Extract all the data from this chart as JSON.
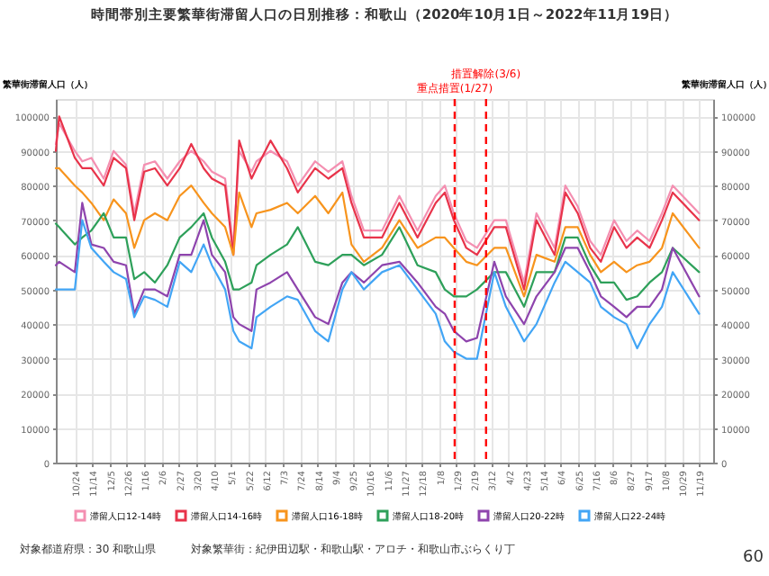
{
  "chart_data": {
    "type": "line",
    "title": "時間帯別主要繁華街滞留人口の日別推移：和歌山（2020年10月1日～2022年11月19日）",
    "ylabel": "繁華街滞留人口（人）",
    "y2label": "繁華街滞留人口（人）",
    "x": [
      "2020-10-01",
      "2020-10-05",
      "2020-10-24",
      "2020-11-02",
      "2020-11-13",
      "2020-11-28",
      "2020-12-10",
      "2020-12-25",
      "2021-01-04",
      "2021-01-16",
      "2021-01-29",
      "2021-02-13",
      "2021-02-28",
      "2021-03-14",
      "2021-03-29",
      "2021-04-08",
      "2021-04-24",
      "2021-05-04",
      "2021-05-11",
      "2021-05-26",
      "2021-06-01",
      "2021-06-18",
      "2021-07-08",
      "2021-07-21",
      "2021-08-11",
      "2021-08-27",
      "2021-09-13",
      "2021-09-24",
      "2021-10-09",
      "2021-10-31",
      "2021-11-21",
      "2021-12-13",
      "2022-01-04",
      "2022-01-15",
      "2022-01-26",
      "2022-02-10",
      "2022-02-23",
      "2022-03-16",
      "2022-03-30",
      "2022-04-21",
      "2022-05-06",
      "2022-05-28",
      "2022-06-10",
      "2022-06-25",
      "2022-07-10",
      "2022-07-23",
      "2022-08-08",
      "2022-08-23",
      "2022-09-05",
      "2022-09-20",
      "2022-10-05",
      "2022-10-18",
      "2022-11-19"
    ],
    "series": [
      {
        "name": "滞留人口12-14時",
        "color": "#f48fb1",
        "values": [
          92000,
          98000,
          90000,
          87000,
          88000,
          82000,
          90000,
          86000,
          72000,
          86000,
          87000,
          82000,
          87000,
          90000,
          87000,
          84000,
          82000,
          62000,
          90000,
          84000,
          87000,
          90000,
          87000,
          80000,
          87000,
          84000,
          87000,
          77000,
          67000,
          67000,
          77000,
          67000,
          77000,
          80000,
          72000,
          64000,
          62000,
          70000,
          70000,
          52000,
          72000,
          62000,
          80000,
          74000,
          64000,
          60000,
          70000,
          64000,
          67000,
          64000,
          72000,
          80000,
          72000
        ]
      },
      {
        "name": "滞留人口14-16時",
        "color": "#e8334a",
        "values": [
          90000,
          100000,
          88000,
          85000,
          85000,
          80000,
          88000,
          85000,
          70000,
          84000,
          85000,
          80000,
          85000,
          92000,
          85000,
          82000,
          80000,
          60000,
          93000,
          82000,
          85000,
          93000,
          85000,
          78000,
          85000,
          82000,
          85000,
          75000,
          65000,
          65000,
          75000,
          65000,
          75000,
          78000,
          70000,
          62000,
          60000,
          68000,
          68000,
          50000,
          70000,
          60000,
          78000,
          72000,
          62000,
          58000,
          68000,
          62000,
          65000,
          62000,
          70000,
          78000,
          70000
        ]
      },
      {
        "name": "滞留人口16-18時",
        "color": "#f7941d",
        "values": [
          85000,
          85000,
          80000,
          78000,
          75000,
          70000,
          76000,
          72000,
          62000,
          70000,
          72000,
          70000,
          77000,
          80000,
          75000,
          72000,
          68000,
          60000,
          78000,
          68000,
          72000,
          73000,
          75000,
          72000,
          77000,
          72000,
          78000,
          63000,
          58000,
          62000,
          70000,
          62000,
          65000,
          65000,
          62000,
          58000,
          57000,
          62000,
          62000,
          48000,
          60000,
          58000,
          68000,
          68000,
          60000,
          55000,
          58000,
          55000,
          57000,
          58000,
          62000,
          72000,
          62000
        ]
      },
      {
        "name": "滞留人口18-20時",
        "color": "#2ea05a",
        "values": [
          69000,
          68000,
          63000,
          65000,
          67000,
          72000,
          65000,
          65000,
          53000,
          55000,
          52000,
          57000,
          65000,
          68000,
          72000,
          65000,
          58000,
          50000,
          50000,
          52000,
          57000,
          60000,
          63000,
          68000,
          58000,
          57000,
          60000,
          60000,
          57000,
          60000,
          68000,
          57000,
          55000,
          50000,
          48000,
          48000,
          50000,
          55000,
          55000,
          45000,
          55000,
          55000,
          65000,
          65000,
          57000,
          52000,
          52000,
          47000,
          48000,
          52000,
          55000,
          62000,
          55000
        ]
      },
      {
        "name": "滞留人口20-22時",
        "color": "#8e44ad",
        "values": [
          57000,
          58000,
          55000,
          75000,
          63000,
          62000,
          58000,
          57000,
          43000,
          50000,
          50000,
          48000,
          60000,
          60000,
          70000,
          60000,
          55000,
          42000,
          40000,
          38000,
          50000,
          52000,
          55000,
          50000,
          42000,
          40000,
          52000,
          55000,
          52000,
          57000,
          58000,
          52000,
          45000,
          43000,
          38000,
          35000,
          36000,
          58000,
          48000,
          40000,
          48000,
          55000,
          62000,
          62000,
          55000,
          48000,
          45000,
          42000,
          45000,
          45000,
          50000,
          62000,
          48000
        ]
      },
      {
        "name": "滞留人口22-24時",
        "color": "#42a5f5",
        "values": [
          50000,
          50000,
          50000,
          70000,
          62000,
          58000,
          55000,
          53000,
          42000,
          48000,
          47000,
          45000,
          58000,
          55000,
          63000,
          57000,
          50000,
          38000,
          35000,
          33000,
          42000,
          45000,
          48000,
          47000,
          38000,
          35000,
          50000,
          55000,
          50000,
          55000,
          57000,
          50000,
          43000,
          35000,
          32000,
          30000,
          30000,
          55000,
          45000,
          35000,
          40000,
          52000,
          58000,
          55000,
          52000,
          45000,
          42000,
          40000,
          33000,
          40000,
          45000,
          55000,
          43000
        ]
      }
    ],
    "xlim": [
      "2020-10-01",
      "2022-12-06"
    ],
    "xticks": [
      {
        "value": "2020-10-24",
        "label": "10/24"
      },
      {
        "value": "2020-11-14",
        "label": "11/14"
      },
      {
        "value": "2020-12-05",
        "label": "12/5"
      },
      {
        "value": "2020-12-26",
        "label": "12/26"
      },
      {
        "value": "2021-01-16",
        "label": "1/16"
      },
      {
        "value": "2021-02-06",
        "label": "2/6"
      },
      {
        "value": "2021-02-27",
        "label": "2/27"
      },
      {
        "value": "2021-03-20",
        "label": "3/20"
      },
      {
        "value": "2021-04-10",
        "label": "4/10"
      },
      {
        "value": "2021-05-01",
        "label": "5/1"
      },
      {
        "value": "2021-05-22",
        "label": "5/22"
      },
      {
        "value": "2021-06-12",
        "label": "6/12"
      },
      {
        "value": "2021-07-03",
        "label": "7/3"
      },
      {
        "value": "2021-07-24",
        "label": "7/24"
      },
      {
        "value": "2021-08-14",
        "label": "8/14"
      },
      {
        "value": "2021-09-04",
        "label": "9/4"
      },
      {
        "value": "2021-09-25",
        "label": "9/25"
      },
      {
        "value": "2021-10-16",
        "label": "10/16"
      },
      {
        "value": "2021-11-06",
        "label": "11/6"
      },
      {
        "value": "2021-11-27",
        "label": "11/27"
      },
      {
        "value": "2021-12-18",
        "label": "12/18"
      },
      {
        "value": "2022-01-08",
        "label": "1/8"
      },
      {
        "value": "2022-01-29",
        "label": "1/29"
      },
      {
        "value": "2022-02-19",
        "label": "2/19"
      },
      {
        "value": "2022-03-12",
        "label": "3/12"
      },
      {
        "value": "2022-04-02",
        "label": "4/2"
      },
      {
        "value": "2022-04-23",
        "label": "4/23"
      },
      {
        "value": "2022-05-14",
        "label": "5/14"
      },
      {
        "value": "2022-06-04",
        "label": "6/4"
      },
      {
        "value": "2022-06-25",
        "label": "6/25"
      },
      {
        "value": "2022-07-16",
        "label": "7/16"
      },
      {
        "value": "2022-08-06",
        "label": "8/6"
      },
      {
        "value": "2022-08-27",
        "label": "8/27"
      },
      {
        "value": "2022-09-17",
        "label": "9/17"
      },
      {
        "value": "2022-10-08",
        "label": "10/8"
      },
      {
        "value": "2022-10-29",
        "label": "10/29"
      },
      {
        "value": "2022-11-19",
        "label": "11/19"
      }
    ],
    "ylim": [
      0,
      105000
    ],
    "yticks": [
      0,
      10000,
      20000,
      30000,
      40000,
      50000,
      60000,
      70000,
      80000,
      90000,
      100000
    ],
    "y2lim": [
      0,
      105000
    ],
    "y2ticks": [
      0,
      10000,
      20000,
      30000,
      40000,
      50000,
      60000,
      70000,
      80000,
      90000,
      100000
    ],
    "ref_lines": [
      {
        "axis": "x",
        "value": "2022-01-27",
        "label": "重点措置(1/27)",
        "color": "#ff0000",
        "line_style": "dashed"
      },
      {
        "axis": "x",
        "value": "2022-03-06",
        "label": "措置解除(3/6)",
        "color": "#ff0000",
        "line_style": "dashed"
      }
    ],
    "annotations": [
      "対象都道府県：30 和歌山県",
      "対象繁華街：紀伊田辺駅・和歌山駅・アロチ・和歌山市ぶらくり丁",
      "60"
    ],
    "grid": true,
    "legend": "bottom",
    "marker": "none",
    "line_style": "solid"
  }
}
